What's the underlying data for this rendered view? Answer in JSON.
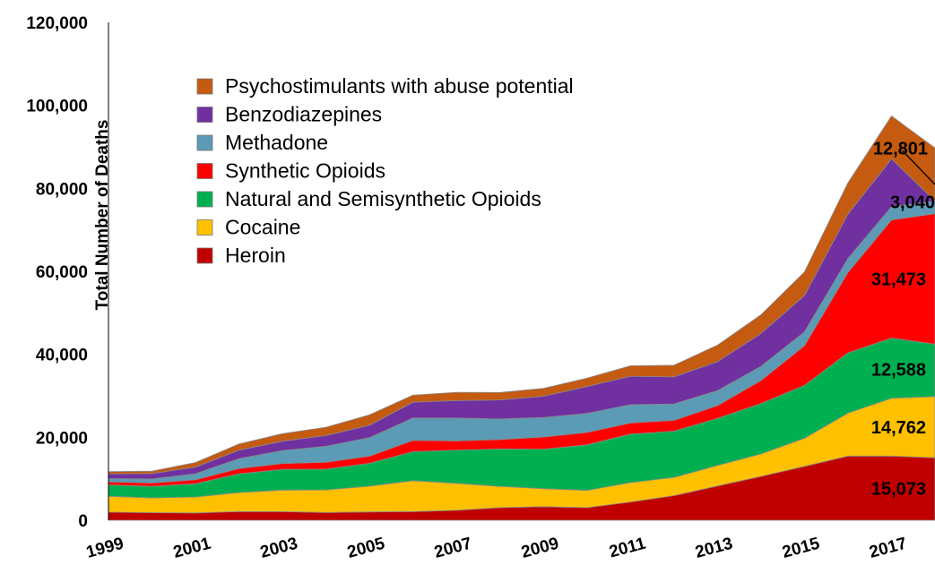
{
  "chart_data": {
    "type": "area",
    "stacked": true,
    "title": "",
    "xlabel": "",
    "ylabel": "Total Number of Deaths",
    "x": [
      1999,
      2000,
      2001,
      2002,
      2003,
      2004,
      2005,
      2006,
      2007,
      2008,
      2009,
      2010,
      2011,
      2012,
      2013,
      2014,
      2015,
      2016,
      2017,
      2018
    ],
    "xtick_labels": [
      "1999",
      "2001",
      "2003",
      "2005",
      "2007",
      "2009",
      "2011",
      "2013",
      "2015",
      "2017"
    ],
    "ylim": [
      0,
      120000
    ],
    "yticks": [
      0,
      20000,
      40000,
      60000,
      80000,
      100000,
      120000
    ],
    "ytick_labels": [
      "0",
      "20,000",
      "40,000",
      "60,000",
      "80,000",
      "100,000",
      "120,000"
    ],
    "grid": false,
    "legend_position": "top-left",
    "series": [
      {
        "name": "Heroin",
        "color": "#C00000",
        "values": [
          1960,
          1842,
          1779,
          2089,
          2080,
          1878,
          2009,
          2088,
          2399,
          3041,
          3278,
          3036,
          4397,
          5925,
          8257,
          10574,
          12989,
          15469,
          15482,
          15073
        ]
      },
      {
        "name": "Cocaine",
        "color": "#FFC000",
        "values": [
          3822,
          3544,
          3833,
          4599,
          5199,
          5443,
          6208,
          7448,
          6512,
          5129,
          4350,
          4183,
          4681,
          4404,
          4944,
          5415,
          6784,
          10375,
          13942,
          14762
        ]
      },
      {
        "name": "Natural and Semisynthetic Opioids",
        "color": "#00B050",
        "values": [
          2749,
          2800,
          3200,
          4500,
          5000,
          5000,
          5500,
          7000,
          8000,
          9000,
          9500,
          10943,
          11693,
          11140,
          11346,
          12159,
          12727,
          14487,
          14495,
          12588
        ]
      },
      {
        "name": "Synthetic Opioids",
        "color": "#FF0000",
        "values": [
          730,
          782,
          957,
          1295,
          1400,
          1664,
          1742,
          2707,
          2213,
          2306,
          2946,
          3007,
          2666,
          2628,
          3105,
          5544,
          9580,
          19413,
          28466,
          31473
        ]
      },
      {
        "name": "Methadone",
        "color": "#5B9BB5",
        "values": [
          784,
          988,
          1456,
          2358,
          3140,
          3845,
          4460,
          5406,
          5518,
          4924,
          4696,
          4577,
          4418,
          3932,
          3591,
          3400,
          3301,
          3373,
          3194,
          3040
        ]
      },
      {
        "name": "Benzodiazepines",
        "color": "#7030A0",
        "values": [
          1135,
          1298,
          1594,
          2053,
          2248,
          2589,
          2984,
          3808,
          4203,
          4601,
          5113,
          6497,
          6872,
          6524,
          6973,
          7945,
          8791,
          10684,
          11537,
          0
        ]
      },
      {
        "name": "Psychostimulants with abuse potential",
        "color": "#C55A11",
        "values": [
          547,
          578,
          1100,
          1500,
          1800,
          2000,
          2500,
          1700,
          2000,
          1800,
          1900,
          2000,
          2500,
          2800,
          4000,
          4500,
          5700,
          7542,
          10333,
          12801
        ]
      }
    ],
    "data_labels": [
      {
        "series": "Heroin",
        "text": "15,073"
      },
      {
        "series": "Cocaine",
        "text": "14,762"
      },
      {
        "series": "Natural and Semisynthetic Opioids",
        "text": "12,588"
      },
      {
        "series": "Synthetic Opioids",
        "text": "31,473"
      },
      {
        "series": "Methadone",
        "text": "3,040"
      },
      {
        "series": "Psychostimulants with abuse potential",
        "text": "12,801"
      }
    ]
  }
}
